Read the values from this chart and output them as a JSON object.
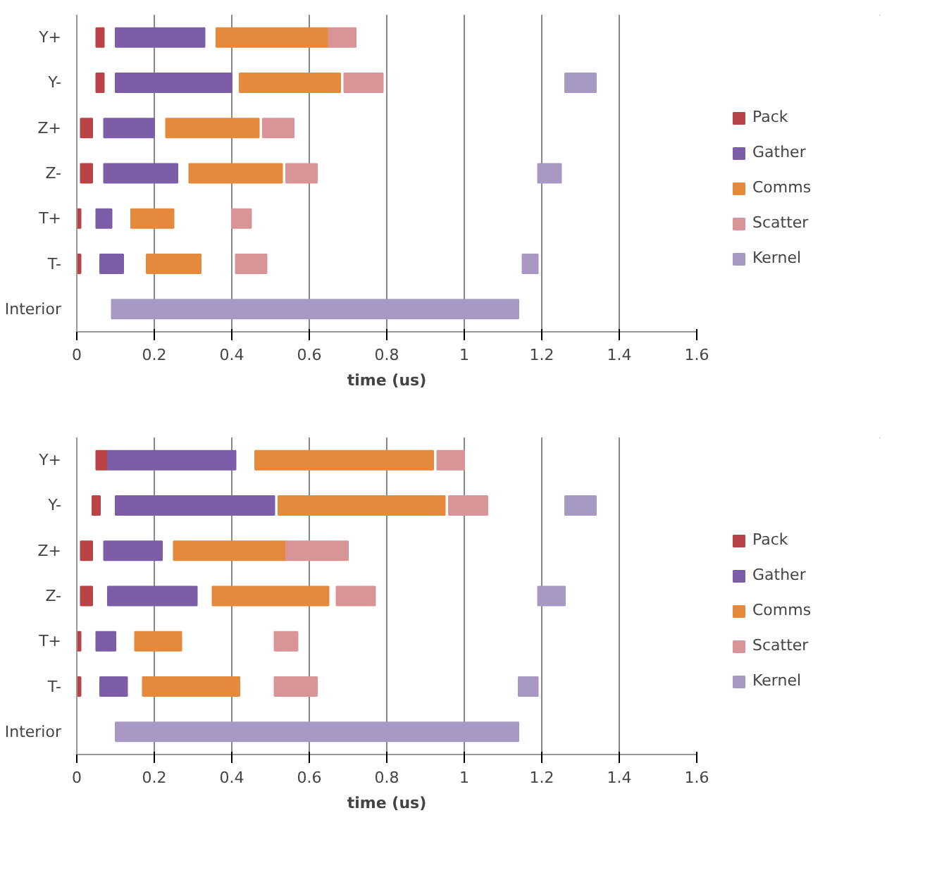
{
  "chart_data": [
    {
      "type": "bar",
      "orientation": "horizontal",
      "xlabel": "time (us)",
      "categories": [
        "Y+",
        "Y-",
        "Z+",
        "Z-",
        "T+",
        "T-",
        "Interior"
      ],
      "xlim": [
        0,
        1.6
      ],
      "xticks": [
        0,
        0.2,
        0.4,
        0.6,
        0.8,
        1,
        1.2,
        1.4,
        1.6
      ],
      "grid": "x",
      "legend": "right",
      "series": [
        {
          "name": "Pack",
          "color": "#b94346",
          "base": [
            0.05,
            0.05,
            0.01,
            0.01,
            0,
            0,
            null
          ],
          "values": [
            0.02,
            0.02,
            0.03,
            0.03,
            0.01,
            0.01,
            null
          ]
        },
        {
          "name": "Gather",
          "color": "#7b5ea7",
          "base": [
            0.1,
            0.1,
            0.07,
            0.07,
            0.05,
            0.06,
            null
          ],
          "values": [
            0.23,
            0.3,
            0.13,
            0.19,
            0.04,
            0.06,
            null
          ]
        },
        {
          "name": "Comms",
          "color": "#e5893c",
          "base": [
            0.36,
            0.42,
            0.23,
            0.29,
            0.14,
            0.18,
            null
          ],
          "values": [
            0.29,
            0.26,
            0.24,
            0.24,
            0.11,
            0.14,
            null
          ]
        },
        {
          "name": "Scatter",
          "color": "#d99497",
          "base": [
            0.65,
            0.69,
            0.48,
            0.54,
            0.4,
            0.41,
            null
          ],
          "values": [
            0.07,
            0.1,
            0.08,
            0.08,
            0.05,
            0.08,
            null
          ]
        },
        {
          "name": "Kernel",
          "color": "#a799c4",
          "base": [
            null,
            1.26,
            null,
            1.19,
            null,
            1.15,
            0.09
          ],
          "values": [
            null,
            0.08,
            null,
            0.06,
            null,
            0.04,
            1.05
          ]
        }
      ]
    },
    {
      "type": "bar",
      "orientation": "horizontal",
      "xlabel": "time (us)",
      "categories": [
        "Y+",
        "Y-",
        "Z+",
        "Z-",
        "T+",
        "T-",
        "Interior"
      ],
      "xlim": [
        0,
        1.6
      ],
      "xticks": [
        0,
        0.2,
        0.4,
        0.6,
        0.8,
        1,
        1.2,
        1.4,
        1.6
      ],
      "grid": "x",
      "legend": "right",
      "series": [
        {
          "name": "Pack",
          "color": "#b94346",
          "base": [
            0.05,
            0.04,
            0.01,
            0.01,
            0,
            0,
            null
          ],
          "values": [
            0.03,
            0.02,
            0.03,
            0.03,
            0.01,
            0.01,
            null
          ]
        },
        {
          "name": "Gather",
          "color": "#7b5ea7",
          "base": [
            0.08,
            0.1,
            0.07,
            0.08,
            0.05,
            0.06,
            null
          ],
          "values": [
            0.33,
            0.41,
            0.15,
            0.23,
            0.05,
            0.07,
            null
          ]
        },
        {
          "name": "Comms",
          "color": "#e5893c",
          "base": [
            0.46,
            0.52,
            0.25,
            0.35,
            0.15,
            0.17,
            null
          ],
          "values": [
            0.46,
            0.43,
            0.29,
            0.3,
            0.12,
            0.25,
            null
          ]
        },
        {
          "name": "Scatter",
          "color": "#d99497",
          "base": [
            0.93,
            0.96,
            0.54,
            0.67,
            0.51,
            0.51,
            null
          ],
          "values": [
            0.07,
            0.1,
            0.16,
            0.1,
            0.06,
            0.11,
            null
          ]
        },
        {
          "name": "Kernel",
          "color": "#a799c4",
          "base": [
            null,
            1.26,
            null,
            1.19,
            null,
            1.14,
            0.1
          ],
          "values": [
            null,
            0.08,
            null,
            0.07,
            null,
            0.05,
            1.04
          ]
        }
      ]
    }
  ]
}
